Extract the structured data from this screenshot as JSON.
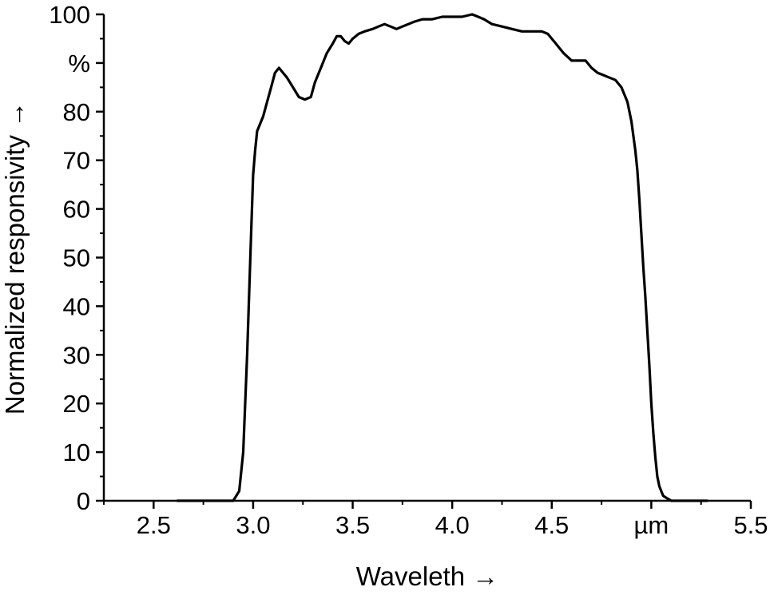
{
  "chart_data": {
    "type": "line",
    "xlabel": "Waveleth →",
    "ylabel": "Normalized responsivity →",
    "xlim": [
      2.25,
      5.5
    ],
    "ylim": [
      0,
      100
    ],
    "x_ticks": [
      {
        "value": 2.5,
        "label": "2.5"
      },
      {
        "value": 3.0,
        "label": "3.0"
      },
      {
        "value": 3.5,
        "label": "3.5"
      },
      {
        "value": 4.0,
        "label": "4.0"
      },
      {
        "value": 4.5,
        "label": "4.5"
      },
      {
        "value": 5.0,
        "label": "µm"
      },
      {
        "value": 5.5,
        "label": "5.5"
      }
    ],
    "y_ticks": [
      {
        "value": 0,
        "label": "0"
      },
      {
        "value": 10,
        "label": "10"
      },
      {
        "value": 20,
        "label": "20"
      },
      {
        "value": 30,
        "label": "30"
      },
      {
        "value": 40,
        "label": "40"
      },
      {
        "value": 50,
        "label": "50"
      },
      {
        "value": 60,
        "label": "60"
      },
      {
        "value": 70,
        "label": "70"
      },
      {
        "value": 80,
        "label": "80"
      },
      {
        "value": 90,
        "label": "%"
      },
      {
        "value": 100,
        "label": "100"
      }
    ],
    "grid": false,
    "series": [
      {
        "color": "#000000",
        "x": [
          2.62,
          2.8,
          2.9,
          2.93,
          2.95,
          2.97,
          2.99,
          3.0,
          3.01,
          3.02,
          3.03,
          3.04,
          3.05,
          3.07,
          3.09,
          3.11,
          3.13,
          3.15,
          3.17,
          3.2,
          3.23,
          3.26,
          3.29,
          3.31,
          3.34,
          3.37,
          3.4,
          3.42,
          3.44,
          3.46,
          3.48,
          3.5,
          3.53,
          3.56,
          3.6,
          3.63,
          3.66,
          3.69,
          3.72,
          3.75,
          3.78,
          3.81,
          3.85,
          3.9,
          3.95,
          4.0,
          4.05,
          4.1,
          4.13,
          4.16,
          4.2,
          4.25,
          4.3,
          4.35,
          4.4,
          4.45,
          4.48,
          4.52,
          4.56,
          4.6,
          4.64,
          4.67,
          4.7,
          4.73,
          4.76,
          4.79,
          4.82,
          4.85,
          4.88,
          4.9,
          4.92,
          4.93,
          4.94,
          4.95,
          4.96,
          4.97,
          4.98,
          4.99,
          5.0,
          5.01,
          5.02,
          5.03,
          5.04,
          5.05,
          5.06,
          5.08,
          5.1,
          5.13,
          5.17,
          5.22,
          5.28
        ],
        "y": [
          0,
          0,
          0,
          2,
          10,
          30,
          55,
          67,
          72,
          76,
          77,
          78,
          79,
          82,
          85,
          88,
          89,
          88,
          87,
          85,
          83,
          82.5,
          83,
          86,
          89,
          92,
          94,
          95.5,
          95.5,
          94.5,
          94,
          95,
          96,
          96.5,
          97,
          97.5,
          98,
          97.5,
          97,
          97.5,
          98,
          98.5,
          99,
          99,
          99.5,
          99.5,
          99.5,
          100,
          99.5,
          99,
          98,
          97.5,
          97,
          96.5,
          96.5,
          96.5,
          96,
          94,
          92,
          90.5,
          90.5,
          90.5,
          89,
          88,
          87.5,
          87,
          86.5,
          85,
          82,
          78,
          72,
          68,
          62,
          55,
          48,
          42,
          35,
          28,
          20,
          14,
          9,
          5,
          3,
          2,
          1,
          0.5,
          0,
          0,
          0,
          0,
          0
        ]
      }
    ]
  }
}
